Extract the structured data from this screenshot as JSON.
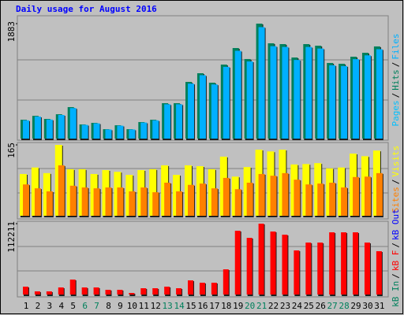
{
  "chart_data": [
    {
      "type": "bar",
      "title": "Daily usage for August 2016",
      "ylim": [
        0,
        1883
      ],
      "yticks": [
        1883
      ],
      "series": [
        {
          "name": "Hits",
          "color": "#00805c",
          "values": [
            320,
            383,
            333,
            409,
            525,
            243,
            269,
            166,
            230,
            166,
            282,
            320,
            589,
            589,
            935,
            1076,
            922,
            1217,
            1486,
            1307,
            1883,
            1563,
            1550,
            1332,
            1550,
            1524,
            1243,
            1230,
            1345,
            1409,
            1512
          ]
        },
        {
          "name": "Files",
          "color": "#00b0ff",
          "values": [
            310,
            371,
            323,
            397,
            509,
            236,
            261,
            161,
            223,
            161,
            274,
            310,
            571,
            571,
            907,
            1044,
            894,
            1180,
            1441,
            1268,
            1826,
            1516,
            1504,
            1292,
            1504,
            1478,
            1206,
            1193,
            1305,
            1367,
            1467
          ]
        }
      ],
      "legend_only": [
        {
          "name": "Pages",
          "color": "#00c0ff"
        }
      ],
      "legend_separator": "/"
    },
    {
      "type": "bar",
      "ylim": [
        0,
        165
      ],
      "yticks": [
        165
      ],
      "series": [
        {
          "name": "Visits",
          "color": "#ffff00",
          "values": [
            98,
            113,
            100,
            165,
            109,
            109,
            98,
            107,
            103,
            96,
            107,
            109,
            118,
            96,
            118,
            116,
            109,
            138,
            92,
            114,
            154,
            150,
            154,
            120,
            121,
            123,
            111,
            113,
            145,
            139,
            152
          ]
        },
        {
          "name": "Sites",
          "color": "#ff8000",
          "values": [
            74,
            65,
            58,
            118,
            71,
            67,
            65,
            67,
            67,
            58,
            67,
            56,
            78,
            58,
            73,
            76,
            65,
            89,
            63,
            78,
            98,
            94,
            100,
            85,
            74,
            76,
            78,
            67,
            91,
            92,
            100
          ]
        }
      ],
      "legend_separator": "/"
    },
    {
      "type": "bar",
      "ylim": [
        0,
        112211
      ],
      "yticks": [
        112211
      ],
      "categories": [
        "1",
        "2",
        "3",
        "4",
        "5",
        "6",
        "7",
        "8",
        "9",
        "10",
        "11",
        "12",
        "13",
        "14",
        "15",
        "16",
        "17",
        "18",
        "19",
        "20",
        "21",
        "22",
        "23",
        "24",
        "25",
        "26",
        "27",
        "28",
        "29",
        "30",
        "31"
      ],
      "weekend_categories": [
        5,
        6,
        12,
        13,
        19,
        20,
        26,
        27
      ],
      "weekend_color": "#00805c",
      "series": [
        {
          "name": "kB F",
          "color": "#ff0000",
          "values": [
            13564,
            6165,
            6165,
            12331,
            24662,
            12331,
            12331,
            8632,
            8632,
            3700,
            11098,
            11098,
            13564,
            11098,
            23429,
            19730,
            19730,
            40692,
            101113,
            90016,
            112211,
            99880,
            94948,
            70287,
            82618,
            82618,
            98649,
            98649,
            98649,
            82618,
            69054
          ]
        }
      ],
      "legend_only": [
        {
          "name": "kB In",
          "color": "#00805c"
        },
        {
          "name": "kB Out",
          "color": "#0000ff"
        }
      ],
      "legend_separator": "/"
    }
  ]
}
